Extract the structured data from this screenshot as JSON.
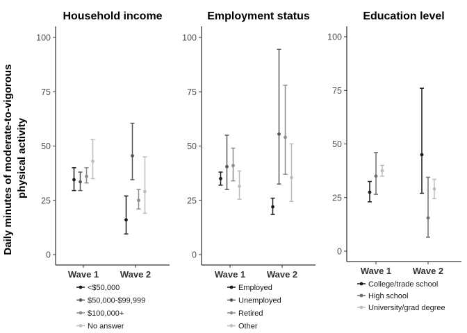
{
  "figure": {
    "ylabel": "Daily minutes of moderate-to-vigorous physical activity",
    "ylabel_lines": [
      "Daily minutes of moderate-to-vigorous",
      "physical activity"
    ]
  },
  "chart_data": [
    {
      "type": "errorbar",
      "title": "Household income",
      "categories": [
        "Wave 1",
        "Wave 2"
      ],
      "ylim": [
        0,
        100
      ],
      "yticks": [
        0,
        25,
        50,
        75,
        100
      ],
      "legend_position": "bottom",
      "series": [
        {
          "name": "<$50,000",
          "color": "#1a1a1a",
          "points": [
            {
              "x": "Wave 1",
              "y": 34.5,
              "lo": 29.5,
              "hi": 40
            },
            {
              "x": "Wave 2",
              "y": 16,
              "lo": 9.5,
              "hi": 27
            }
          ]
        },
        {
          "name": "$50,000-$99,999",
          "color": "#555555",
          "points": [
            {
              "x": "Wave 1",
              "y": 33.5,
              "lo": 29.5,
              "hi": 38
            },
            {
              "x": "Wave 2",
              "y": 45.5,
              "lo": 34.5,
              "hi": 60.5
            }
          ]
        },
        {
          "name": "$100,000+",
          "color": "#8c8c8c",
          "points": [
            {
              "x": "Wave 1",
              "y": 36,
              "lo": 33,
              "hi": 40
            },
            {
              "x": "Wave 2",
              "y": 25,
              "lo": 21,
              "hi": 30
            }
          ]
        },
        {
          "name": "No answer",
          "color": "#bdbdbd",
          "points": [
            {
              "x": "Wave 1",
              "y": 43,
              "lo": 35,
              "hi": 53
            },
            {
              "x": "Wave 2",
              "y": 29,
              "lo": 19,
              "hi": 45
            }
          ]
        }
      ]
    },
    {
      "type": "errorbar",
      "title": "Employment status",
      "categories": [
        "Wave 1",
        "Wave 2"
      ],
      "ylim": [
        0,
        100
      ],
      "yticks": [
        0,
        25,
        50,
        75,
        100
      ],
      "legend_position": "bottom",
      "series": [
        {
          "name": "Employed",
          "color": "#1a1a1a",
          "points": [
            {
              "x": "Wave 1",
              "y": 35,
              "lo": 32,
              "hi": 38
            },
            {
              "x": "Wave 2",
              "y": 22,
              "lo": 18.5,
              "hi": 26
            }
          ]
        },
        {
          "name": "Unemployed",
          "color": "#555555",
          "points": [
            {
              "x": "Wave 1",
              "y": 40.5,
              "lo": 30,
              "hi": 55
            },
            {
              "x": "Wave 2",
              "y": 55.5,
              "lo": 32.5,
              "hi": 94.5
            }
          ]
        },
        {
          "name": "Retired",
          "color": "#8c8c8c",
          "points": [
            {
              "x": "Wave 1",
              "y": 41,
              "lo": 34,
              "hi": 49
            },
            {
              "x": "Wave 2",
              "y": 54,
              "lo": 37,
              "hi": 78
            }
          ]
        },
        {
          "name": "Other",
          "color": "#bdbdbd",
          "points": [
            {
              "x": "Wave 1",
              "y": 31.5,
              "lo": 25.5,
              "hi": 38.5
            },
            {
              "x": "Wave 2",
              "y": 35.5,
              "lo": 24.5,
              "hi": 51
            }
          ]
        }
      ]
    },
    {
      "type": "errorbar",
      "title": "Education level",
      "categories": [
        "Wave 1",
        "Wave 2"
      ],
      "ylim": [
        0,
        100
      ],
      "yticks": [
        0,
        25,
        50,
        75,
        100
      ],
      "legend_position": "bottom",
      "series": [
        {
          "name": "College/trade school",
          "color": "#1a1a1a",
          "points": [
            {
              "x": "Wave 1",
              "y": 27.5,
              "lo": 23,
              "hi": 32.5
            },
            {
              "x": "Wave 2",
              "y": 45,
              "lo": 27,
              "hi": 76
            }
          ]
        },
        {
          "name": "High school",
          "color": "#6e6e6e",
          "points": [
            {
              "x": "Wave 1",
              "y": 35,
              "lo": 26.5,
              "hi": 46
            },
            {
              "x": "Wave 2",
              "y": 15.5,
              "lo": 6.5,
              "hi": 34.5
            }
          ]
        },
        {
          "name": "University/grad degree",
          "color": "#bdbdbd",
          "points": [
            {
              "x": "Wave 1",
              "y": 37.5,
              "lo": 35,
              "hi": 40
            },
            {
              "x": "Wave 2",
              "y": 29,
              "lo": 24.5,
              "hi": 33.5
            }
          ]
        }
      ]
    }
  ]
}
